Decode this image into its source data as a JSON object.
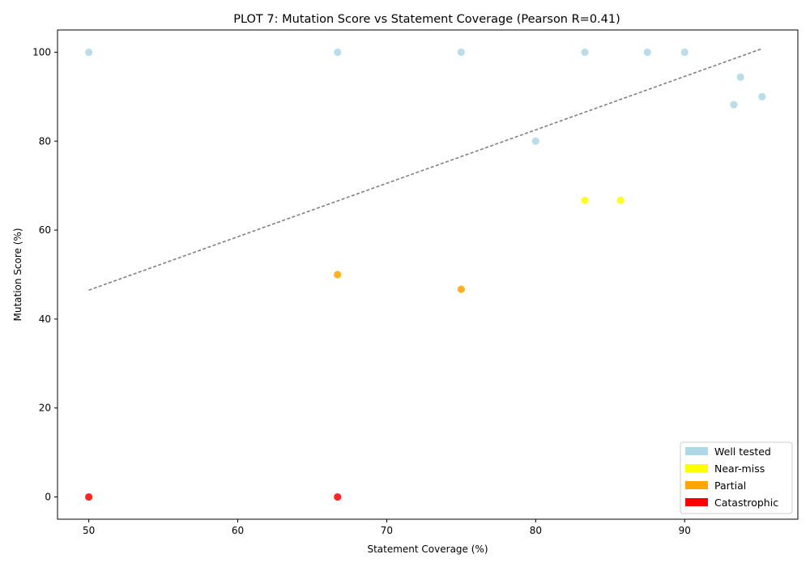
{
  "chart_data": {
    "type": "scatter",
    "title": "PLOT 7: Mutation Score vs Statement Coverage (Pearson R=0.41)",
    "xlabel": "Statement Coverage (%)",
    "ylabel": "Mutation Score (%)",
    "xlim": [
      47.9,
      97.6
    ],
    "ylim": [
      -5,
      105
    ],
    "xticks": [
      50,
      60,
      70,
      80,
      90
    ],
    "yticks": [
      0,
      20,
      40,
      60,
      80,
      100
    ],
    "grid": false,
    "legend_position": "lower-right",
    "series": [
      {
        "name": "Well tested",
        "color": "#add8e6",
        "points": [
          {
            "x": 50.0,
            "y": 100.0
          },
          {
            "x": 66.7,
            "y": 100.0
          },
          {
            "x": 75.0,
            "y": 100.0
          },
          {
            "x": 83.3,
            "y": 100.0
          },
          {
            "x": 87.5,
            "y": 100.0
          },
          {
            "x": 90.0,
            "y": 100.0
          },
          {
            "x": 93.3,
            "y": 88.2
          },
          {
            "x": 93.75,
            "y": 94.4
          },
          {
            "x": 95.2,
            "y": 90.0
          },
          {
            "x": 80.0,
            "y": 80.0
          }
        ]
      },
      {
        "name": "Near-miss",
        "color": "#ffff00",
        "points": [
          {
            "x": 83.3,
            "y": 66.7
          },
          {
            "x": 85.7,
            "y": 66.7
          }
        ]
      },
      {
        "name": "Partial",
        "color": "#ffa500",
        "points": [
          {
            "x": 66.7,
            "y": 50.0
          },
          {
            "x": 75.0,
            "y": 46.7
          }
        ]
      },
      {
        "name": "Catastrophic",
        "color": "#ff0000",
        "points": [
          {
            "x": 50.0,
            "y": 0.0
          },
          {
            "x": 66.7,
            "y": 0.0
          }
        ]
      }
    ],
    "trendline": {
      "color": "#808080",
      "style": "dashed",
      "x": [
        50.0,
        95.2
      ],
      "y": [
        46.5,
        100.8
      ]
    }
  }
}
